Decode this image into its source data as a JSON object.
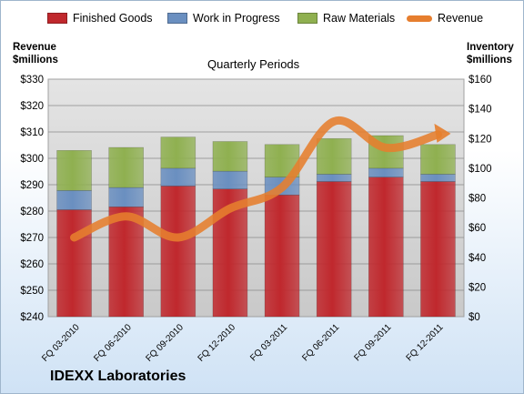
{
  "company": "IDEXX Laboratories",
  "chart_data": {
    "type": "bar",
    "subtitle": "Quarterly Periods",
    "categories": [
      "FQ 03-2010",
      "FQ 06-2010",
      "FQ 09-2010",
      "FQ 12-2010",
      "FQ 03-2011",
      "FQ 06-2011",
      "FQ 09-2011",
      "FQ 12-2011"
    ],
    "stacked": true,
    "series": [
      {
        "name": "Finished Goods",
        "axis": "right",
        "color": "#c0282d",
        "values": [
          72,
          74,
          88,
          86,
          82,
          91,
          94,
          91
        ]
      },
      {
        "name": "Work in Progress",
        "axis": "right",
        "color": "#6a8fc0",
        "values": [
          13,
          13,
          12,
          12,
          12,
          5,
          6,
          5
        ]
      },
      {
        "name": "Raw Materials",
        "axis": "right",
        "color": "#8fb050",
        "values": [
          27,
          27,
          21,
          20,
          22,
          24,
          22,
          20
        ]
      },
      {
        "name": "Revenue",
        "type": "line",
        "axis": "left",
        "color": "#e67e2e",
        "values": [
          270,
          278,
          270,
          281,
          289,
          314,
          304,
          309
        ]
      }
    ],
    "y_left": {
      "label": "Revenue $millions",
      "label_lines": [
        "Revenue",
        "$millions"
      ],
      "min": 240,
      "max": 330,
      "step": 10,
      "format": "$"
    },
    "y_right": {
      "label": "Inventory $millions",
      "label_lines": [
        "Inventory",
        "$millions"
      ],
      "min": 0,
      "max": 160,
      "step": 20,
      "format": "$"
    },
    "grid": true,
    "legend": "top"
  }
}
